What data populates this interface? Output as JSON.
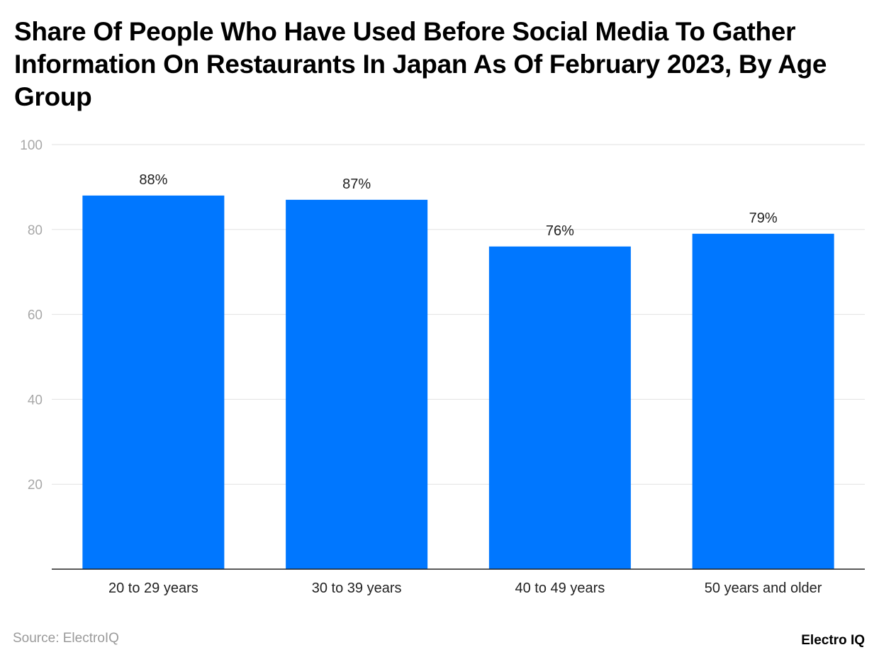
{
  "chart_data": {
    "type": "bar",
    "title": "Share Of People Who Have Used Before Social Media To Gather Information On Restaurants In Japan As Of February 2023, By Age Group",
    "categories": [
      "20 to 29 years",
      "30 to 39 years",
      "40 to 49 years",
      "50 years and older"
    ],
    "values": [
      88,
      87,
      76,
      79
    ],
    "data_labels": [
      "88%",
      "87%",
      "76%",
      "79%"
    ],
    "xlabel": "",
    "ylabel": "",
    "ylim": [
      0,
      100
    ],
    "yticks": [
      20,
      40,
      60,
      80,
      100
    ],
    "grid": true,
    "bar_color": "#0077ff"
  },
  "source": "Source: ElectroIQ",
  "logo": "Electro IQ"
}
